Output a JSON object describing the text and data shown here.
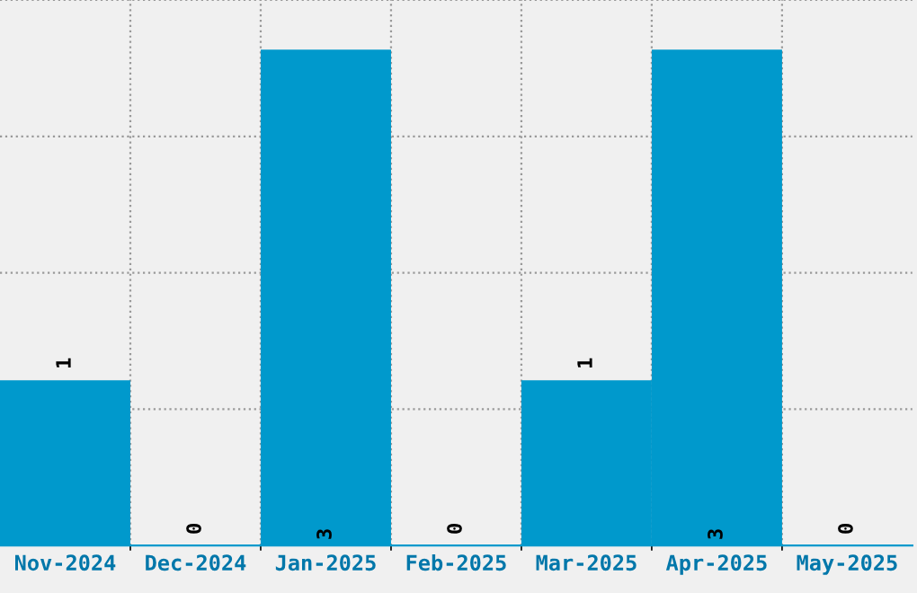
{
  "chart_data": {
    "type": "bar",
    "categories": [
      "Nov-2024",
      "Dec-2024",
      "Jan-2025",
      "Feb-2025",
      "Mar-2025",
      "Apr-2025",
      "May-2025"
    ],
    "values": [
      1,
      0,
      3,
      0,
      1,
      3,
      0
    ],
    "color": "#0099cc",
    "ylim": [
      0,
      3.3
    ],
    "yticks": [
      {
        "value": 0.825,
        "label": null
      },
      {
        "value": 1.65,
        "label": null
      },
      {
        "value": 2.475,
        "label": null
      },
      {
        "value": 3.3,
        "label": null
      }
    ],
    "tick_labels": "x",
    "grid": true,
    "data_labels": true
  }
}
